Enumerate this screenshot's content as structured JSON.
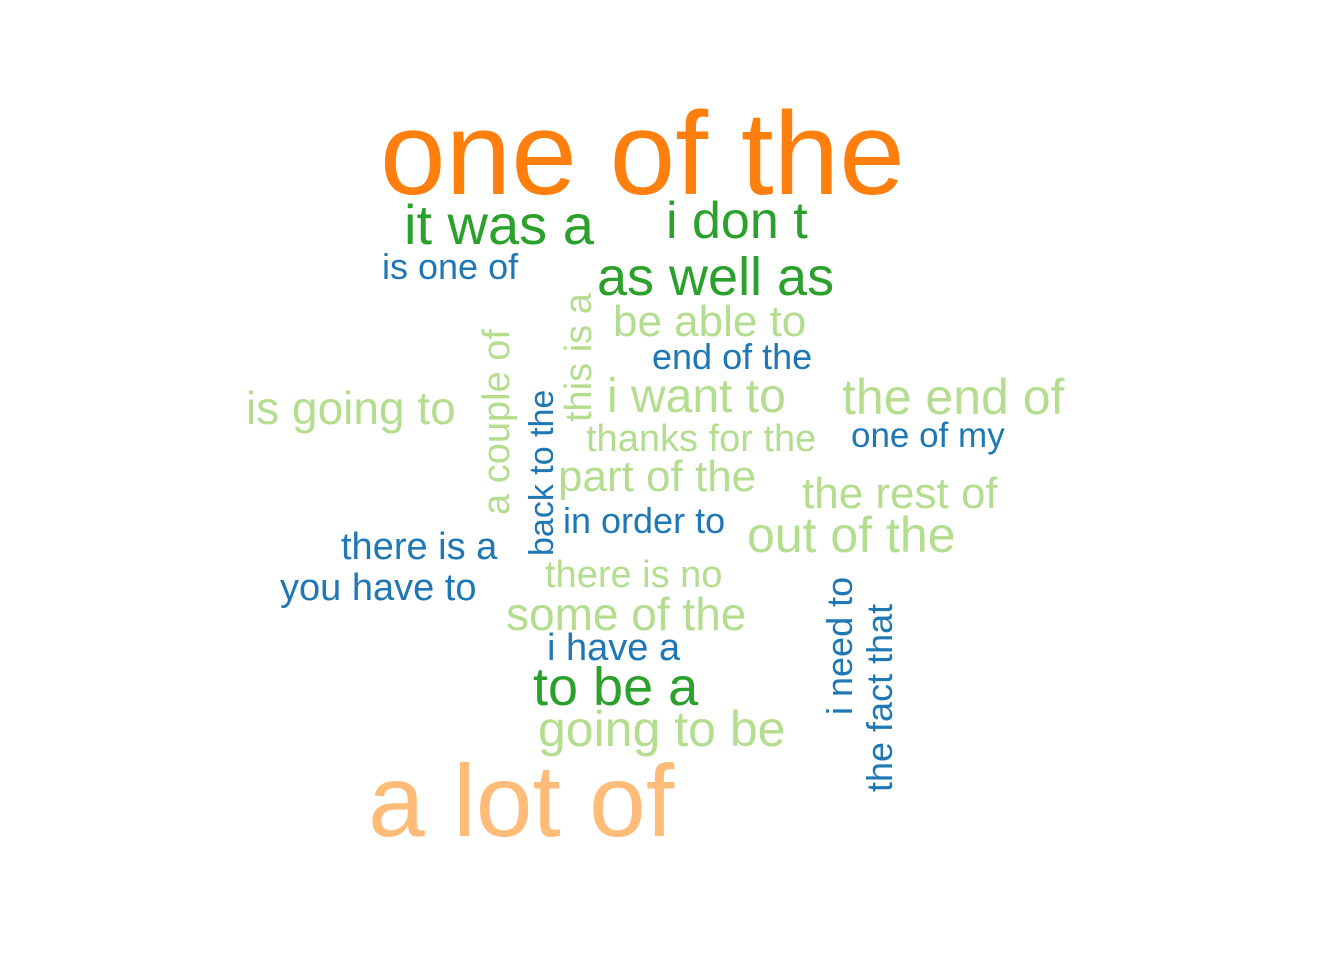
{
  "colors": {
    "orange": "#ff7f0e",
    "light_orange": "#ffbb78",
    "green": "#2ca02c",
    "light_green": "#b5dd8f",
    "blue": "#1f77b4"
  },
  "words": [
    {
      "id": "w01",
      "text": "one of the",
      "color": "orange"
    },
    {
      "id": "w02",
      "text": "it was a",
      "color": "green"
    },
    {
      "id": "w03",
      "text": "i don t",
      "color": "green"
    },
    {
      "id": "w04",
      "text": "is one of",
      "color": "blue"
    },
    {
      "id": "w05",
      "text": "as well as",
      "color": "green"
    },
    {
      "id": "w06",
      "text": "this is a",
      "color": "light_green"
    },
    {
      "id": "w07",
      "text": "a couple of",
      "color": "light_green"
    },
    {
      "id": "w08",
      "text": "be able to",
      "color": "light_green"
    },
    {
      "id": "w09",
      "text": "end of the",
      "color": "blue"
    },
    {
      "id": "w10",
      "text": "back to the",
      "color": "blue"
    },
    {
      "id": "w11",
      "text": "is going to",
      "color": "light_green"
    },
    {
      "id": "w12",
      "text": "i want to",
      "color": "light_green"
    },
    {
      "id": "w13",
      "text": "the end of",
      "color": "light_green"
    },
    {
      "id": "w14",
      "text": "thanks for the",
      "color": "light_green"
    },
    {
      "id": "w15",
      "text": "one of my",
      "color": "blue"
    },
    {
      "id": "w16",
      "text": "part of the",
      "color": "light_green"
    },
    {
      "id": "w17",
      "text": "the rest of",
      "color": "light_green"
    },
    {
      "id": "w18",
      "text": "in order to",
      "color": "blue"
    },
    {
      "id": "w19",
      "text": "out of the",
      "color": "light_green"
    },
    {
      "id": "w20",
      "text": "there is a",
      "color": "blue"
    },
    {
      "id": "w21",
      "text": "there is no",
      "color": "light_green"
    },
    {
      "id": "w22",
      "text": "i need to",
      "color": "blue"
    },
    {
      "id": "w23",
      "text": "you have to",
      "color": "blue"
    },
    {
      "id": "w24",
      "text": "some of the",
      "color": "light_green"
    },
    {
      "id": "w25",
      "text": "the fact that",
      "color": "blue"
    },
    {
      "id": "w26",
      "text": "i have a",
      "color": "blue"
    },
    {
      "id": "w27",
      "text": "to be a",
      "color": "green"
    },
    {
      "id": "w28",
      "text": "going to be",
      "color": "light_green"
    },
    {
      "id": "w29",
      "text": "a lot of",
      "color": "light_orange"
    }
  ]
}
